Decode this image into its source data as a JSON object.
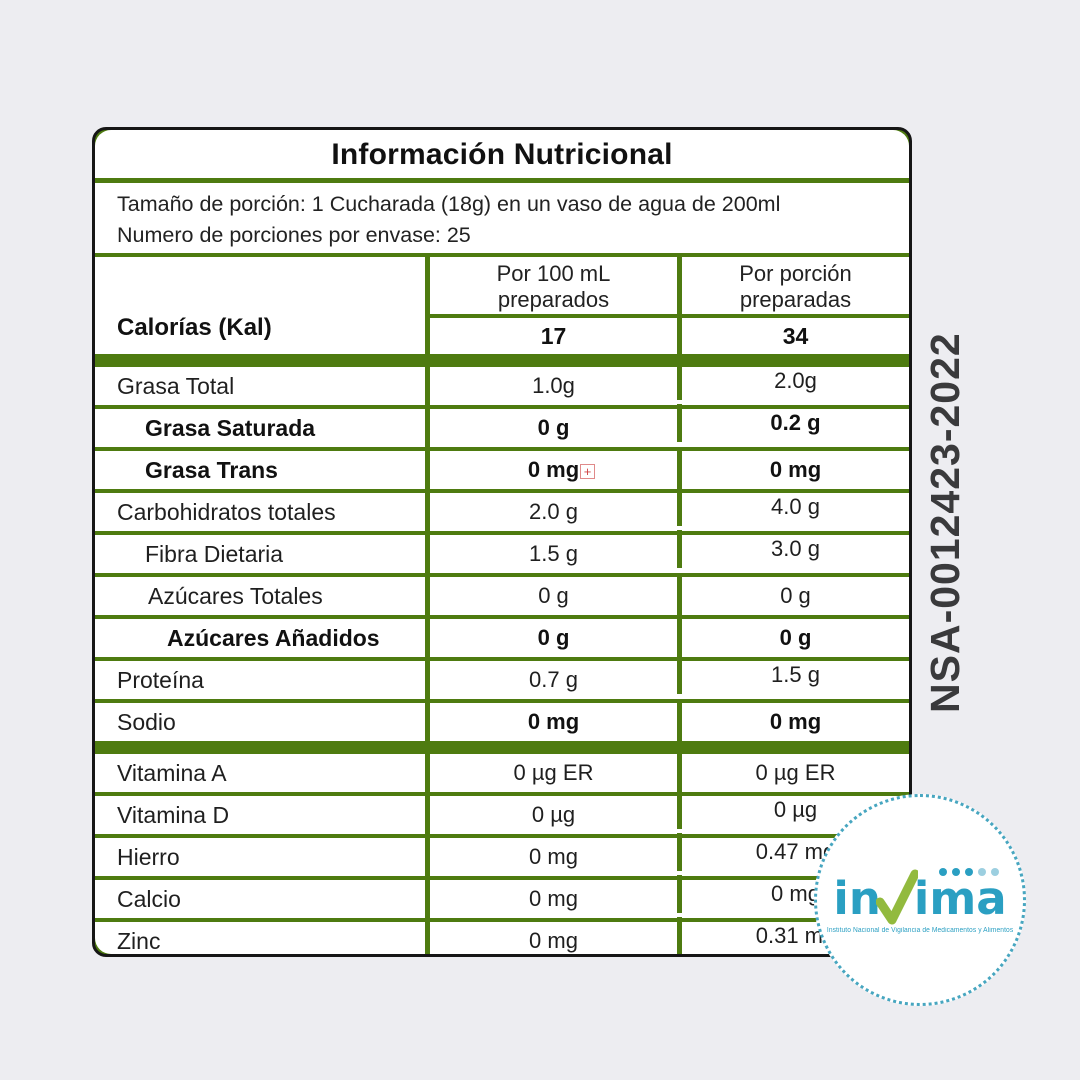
{
  "colors": {
    "table_green": "#4e7b10",
    "border_black": "#161616",
    "background": "#ededf1",
    "invima_blue": "#2a9fc2",
    "check_green": "#92ba3e",
    "registration_text": "#3a3a3c",
    "marker_red": "#cf4444"
  },
  "label": {
    "title": "Información Nutricional",
    "serving_line1": "Tamaño  de porción: 1 Cucharada (18g) en un vaso de agua de 200ml",
    "serving_line2": "Numero de porciones por envase: 25",
    "calories_label": "Calorías (Kal)",
    "col1_header": "Por 100 mL\npreparados",
    "col2_header": "Por porción\npreparadas",
    "calories_per_100ml": "17",
    "calories_per_portion": "34"
  },
  "table": {
    "rows": [
      {
        "label": "Grasa Total",
        "v1": "1.0g",
        "v2": "2.0g",
        "indent": 0,
        "raise2": true
      },
      {
        "label": "Grasa Saturada",
        "v1": "0 g",
        "v2": "0.2 g",
        "indent": 1,
        "bold": true,
        "raise2": true
      },
      {
        "label": "Grasa Trans",
        "v1": "0 mg",
        "v2": "0 mg",
        "indent": 1,
        "bold": true
      },
      {
        "label": "Carbohidratos totales",
        "v1": "2.0 g",
        "v2": "4.0 g",
        "indent": 0,
        "raise2": true
      },
      {
        "label": "Fibra Dietaria",
        "v1": "1.5 g",
        "v2": "3.0 g",
        "indent": 1,
        "raise2": true
      },
      {
        "label": "Azúcares Totales",
        "v1": "0 g",
        "v2": "0 g",
        "indent": 2
      },
      {
        "label": "Azúcares Añadidos",
        "v1": "0 g",
        "v2": "0 g",
        "indent": 3,
        "bold": true
      },
      {
        "label": "Proteína",
        "v1": "0.7 g",
        "v2": "1.5 g",
        "indent": 0,
        "raise2": true
      },
      {
        "label": "Sodio",
        "v1": "0 mg",
        "v2": "0 mg",
        "indent": 0,
        "bold_values": true
      },
      {
        "divider": true
      },
      {
        "label": "Vitamina A",
        "v1": "0 µg ER",
        "v2": "0 µg ER",
        "indent": 0
      },
      {
        "label": "Vitamina D",
        "v1": "0 µg",
        "v2": "0 µg",
        "indent": 0,
        "raise2": true
      },
      {
        "label": "Hierro",
        "v1": "0 mg",
        "v2": "0.47 mg",
        "indent": 0,
        "raise2": true
      },
      {
        "label": "Calcio",
        "v1": "0 mg",
        "v2": "0 mg",
        "indent": 0,
        "raise2": true
      },
      {
        "label": "Zinc",
        "v1": "0 mg",
        "v2": "0.31 mg",
        "indent": 0,
        "raise2": true
      }
    ]
  },
  "annotation_marker": "+",
  "registration": "NSA-0012423-2022",
  "badge": {
    "wordmark_in": "in",
    "wordmark_ima": "ima",
    "tagline": "Instituto Nacional de Vigilancia de Medicamentos y Alimentos"
  }
}
